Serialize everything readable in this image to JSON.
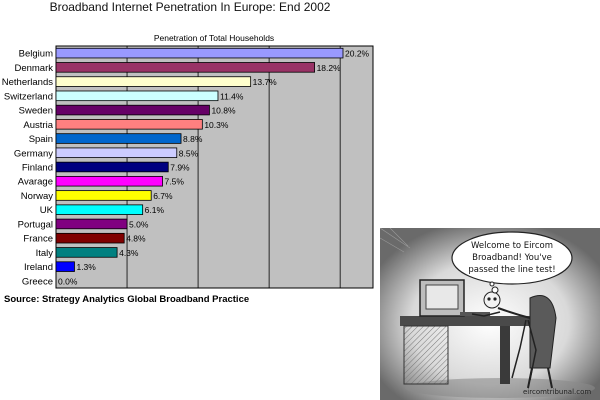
{
  "chart_data": {
    "type": "bar",
    "orientation": "horizontal",
    "title": "Broadband Internet Penetration In Europe: End 2002",
    "subtitle": "Penetration of Total Households",
    "categories": [
      "Belgium",
      "Denmark",
      "Netherlands",
      "Switzerland",
      "Sweden",
      "Austria",
      "Spain",
      "Germany",
      "Finland",
      "Avarage",
      "Norway",
      "UK",
      "Portugal",
      "France",
      "Italy",
      "Ireland",
      "Greece"
    ],
    "values": [
      20.2,
      18.2,
      13.7,
      11.4,
      10.8,
      10.3,
      8.8,
      8.5,
      7.9,
      7.5,
      6.7,
      6.1,
      5.0,
      4.8,
      4.3,
      1.3,
      0.0
    ],
    "value_labels": [
      "20.2%",
      "18.2%",
      "13.7%",
      "11.4%",
      "10.8%",
      "10.3%",
      "8.8%",
      "8.5%",
      "7.9%",
      "7.5%",
      "6.7%",
      "6.1%",
      "5.0%",
      "4.8%",
      "4.3%",
      "1.3%",
      "0.0%"
    ],
    "bar_colors": [
      "#9999ff",
      "#993366",
      "#ffffcc",
      "#ccffff",
      "#660066",
      "#ff8080",
      "#0066cc",
      "#ccccff",
      "#000080",
      "#ff00ff",
      "#ffff00",
      "#00ffff",
      "#800080",
      "#800000",
      "#008080",
      "#0000ff",
      "#9999ff"
    ],
    "xlim": [
      0,
      20.2
    ],
    "grid": true,
    "source": "Source: Strategy Analytics Global Broadband Practice"
  },
  "cartoon": {
    "speech": "Welcome to Eircom Broadband! You've passed the line test!",
    "credit": "eircomtribunal.com"
  }
}
